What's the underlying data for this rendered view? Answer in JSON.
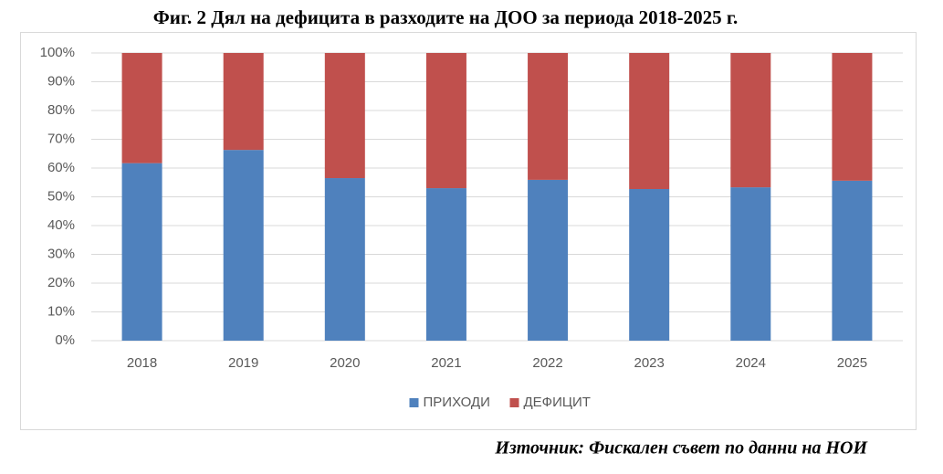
{
  "chart_data": {
    "type": "stacked_bar",
    "title": "Фиг. 2 Дял на дефицита в разходите на ДОО за периода 2018-2025 г.",
    "source": "Източник:  Фискален съвет  по данни на НОИ",
    "categories": [
      "2018",
      "2019",
      "2020",
      "2021",
      "2022",
      "2023",
      "2024",
      "2025"
    ],
    "series": [
      {
        "name": "ПРИХОДИ",
        "color": "#4f81bd",
        "values": [
          61.7,
          66.3,
          56.5,
          53.0,
          55.9,
          52.7,
          53.3,
          55.6
        ]
      },
      {
        "name": "ДЕФИЦИТ",
        "color": "#c0504d",
        "values": [
          38.3,
          33.7,
          43.5,
          47.0,
          44.1,
          47.3,
          46.7,
          44.4
        ]
      }
    ],
    "ylim": [
      0,
      100
    ],
    "yticks": [
      {
        "value": 0,
        "label": "0%"
      },
      {
        "value": 10,
        "label": "10%"
      },
      {
        "value": 20,
        "label": "20%"
      },
      {
        "value": 30,
        "label": "30%"
      },
      {
        "value": 40,
        "label": "40%"
      },
      {
        "value": 50,
        "label": "50%"
      },
      {
        "value": 60,
        "label": "60%"
      },
      {
        "value": 70,
        "label": "70%"
      },
      {
        "value": 80,
        "label": "80%"
      },
      {
        "value": 90,
        "label": "90%"
      },
      {
        "value": 100,
        "label": "100%"
      }
    ],
    "grid": true,
    "legend": "bottom"
  }
}
